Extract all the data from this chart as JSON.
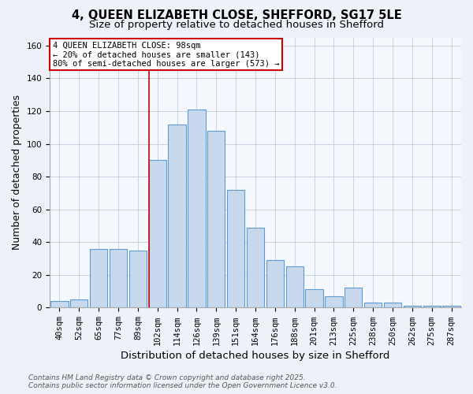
{
  "title_line1": "4, QUEEN ELIZABETH CLOSE, SHEFFORD, SG17 5LE",
  "title_line2": "Size of property relative to detached houses in Shefford",
  "xlabel": "Distribution of detached houses by size in Shefford",
  "ylabel": "Number of detached properties",
  "bar_labels": [
    "40sqm",
    "52sqm",
    "65sqm",
    "77sqm",
    "89sqm",
    "102sqm",
    "114sqm",
    "126sqm",
    "139sqm",
    "151sqm",
    "164sqm",
    "176sqm",
    "188sqm",
    "201sqm",
    "213sqm",
    "225sqm",
    "238sqm",
    "250sqm",
    "262sqm",
    "275sqm",
    "287sqm"
  ],
  "bar_heights": [
    4,
    5,
    36,
    36,
    35,
    90,
    112,
    121,
    108,
    72,
    49,
    29,
    25,
    11,
    7,
    12,
    3,
    3,
    1,
    1,
    1
  ],
  "bar_color": "#c9d9ed",
  "bar_edge_color": "#5b9bd5",
  "red_line_index": 5,
  "red_line_color": "#cc0000",
  "annotation_text": "4 QUEEN ELIZABETH CLOSE: 98sqm\n← 20% of detached houses are smaller (143)\n80% of semi-detached houses are larger (573) →",
  "annotation_box_edge_color": "#cc0000",
  "ylim": [
    0,
    165
  ],
  "yticks": [
    0,
    20,
    40,
    60,
    80,
    100,
    120,
    140,
    160
  ],
  "footnote_line1": "Contains HM Land Registry data © Crown copyright and database right 2025.",
  "footnote_line2": "Contains public sector information licensed under the Open Government Licence v3.0.",
  "background_color": "#eef2f8",
  "plot_bg_color": "#f5f8fd",
  "title_fontsize": 10.5,
  "subtitle_fontsize": 9.5,
  "axis_label_fontsize": 9,
  "tick_fontsize": 7.5,
  "annotation_fontsize": 7.5,
  "footnote_fontsize": 6.5
}
